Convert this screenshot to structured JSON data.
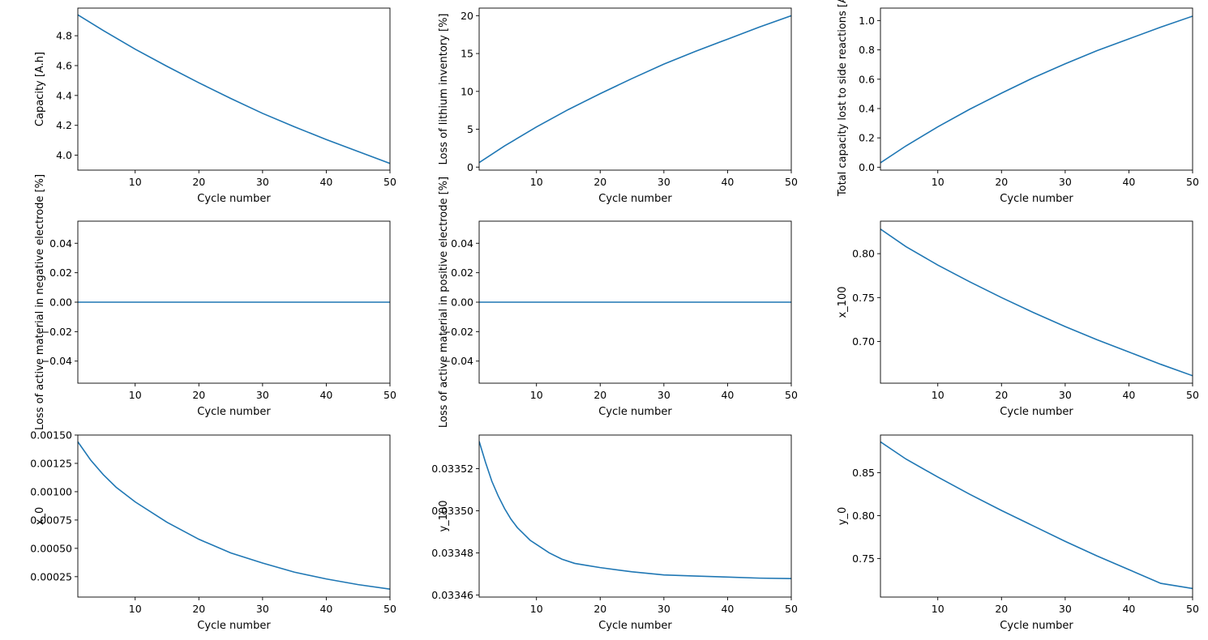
{
  "figure": {
    "line_color": "#1f77b4"
  },
  "chart_data": [
    {
      "type": "line",
      "xlabel": "Cycle number",
      "ylabel": "Capacity [A.h]",
      "xlim": [
        1,
        50
      ],
      "ylim": [
        3.9,
        4.985
      ],
      "xticks": [
        10,
        20,
        30,
        40,
        50
      ],
      "yticks": [
        4.0,
        4.2,
        4.4,
        4.6,
        4.8
      ],
      "ytick_labels": [
        "4.0",
        "4.2",
        "4.4",
        "4.6",
        "4.8"
      ],
      "series": [
        {
          "x": [
            1,
            5,
            10,
            15,
            20,
            25,
            30,
            35,
            40,
            45,
            50
          ],
          "values": [
            4.94,
            4.835,
            4.71,
            4.595,
            4.485,
            4.38,
            4.28,
            4.19,
            4.105,
            4.025,
            3.945
          ]
        }
      ],
      "grid": false
    },
    {
      "type": "line",
      "xlabel": "Cycle number",
      "ylabel": "Loss of lithium inventory [%]",
      "xlim": [
        1,
        50
      ],
      "ylim": [
        -0.4,
        21.0
      ],
      "xticks": [
        10,
        20,
        30,
        40,
        50
      ],
      "yticks": [
        0,
        5,
        10,
        15,
        20
      ],
      "ytick_labels": [
        "0",
        "5",
        "10",
        "15",
        "20"
      ],
      "series": [
        {
          "x": [
            1,
            5,
            10,
            15,
            20,
            25,
            30,
            35,
            40,
            45,
            50
          ],
          "values": [
            0.6,
            2.8,
            5.3,
            7.6,
            9.7,
            11.7,
            13.6,
            15.3,
            16.9,
            18.5,
            20.0
          ]
        }
      ],
      "grid": false
    },
    {
      "type": "line",
      "xlabel": "Cycle number",
      "ylabel": "Total capacity lost to side reactions [A.h]",
      "xlim": [
        1,
        50
      ],
      "ylim": [
        -0.02,
        1.085
      ],
      "xticks": [
        10,
        20,
        30,
        40,
        50
      ],
      "yticks": [
        0.0,
        0.2,
        0.4,
        0.6,
        0.8,
        1.0
      ],
      "ytick_labels": [
        "0.0",
        "0.2",
        "0.4",
        "0.6",
        "0.8",
        "1.0"
      ],
      "series": [
        {
          "x": [
            1,
            5,
            10,
            15,
            20,
            25,
            30,
            35,
            40,
            45,
            50
          ],
          "values": [
            0.03,
            0.145,
            0.275,
            0.395,
            0.505,
            0.61,
            0.705,
            0.795,
            0.875,
            0.955,
            1.03
          ]
        }
      ],
      "grid": false
    },
    {
      "type": "line",
      "xlabel": "Cycle number",
      "ylabel": "Loss of active material in negative electrode [%]",
      "xlim": [
        1,
        50
      ],
      "ylim": [
        -0.055,
        0.055
      ],
      "xticks": [
        10,
        20,
        30,
        40,
        50
      ],
      "yticks": [
        -0.04,
        -0.02,
        0.0,
        0.02,
        0.04
      ],
      "ytick_labels": [
        "−0.04",
        "−0.02",
        "0.00",
        "0.02",
        "0.04"
      ],
      "series": [
        {
          "x": [
            1,
            50
          ],
          "values": [
            0,
            0
          ]
        }
      ],
      "grid": false
    },
    {
      "type": "line",
      "xlabel": "Cycle number",
      "ylabel": "Loss of active material in positive electrode [%]",
      "xlim": [
        1,
        50
      ],
      "ylim": [
        -0.055,
        0.055
      ],
      "xticks": [
        10,
        20,
        30,
        40,
        50
      ],
      "yticks": [
        -0.04,
        -0.02,
        0.0,
        0.02,
        0.04
      ],
      "ytick_labels": [
        "−0.04",
        "−0.02",
        "0.00",
        "0.02",
        "0.04"
      ],
      "series": [
        {
          "x": [
            1,
            50
          ],
          "values": [
            0,
            0
          ]
        }
      ],
      "grid": false
    },
    {
      "type": "line",
      "xlabel": "Cycle number",
      "ylabel": "x_100",
      "xlim": [
        1,
        50
      ],
      "ylim": [
        0.6525,
        0.837
      ],
      "xticks": [
        10,
        20,
        30,
        40,
        50
      ],
      "yticks": [
        0.7,
        0.75,
        0.8
      ],
      "ytick_labels": [
        "0.70",
        "0.75",
        "0.80"
      ],
      "series": [
        {
          "x": [
            1,
            5,
            10,
            15,
            20,
            25,
            30,
            35,
            40,
            45,
            50
          ],
          "values": [
            0.828,
            0.808,
            0.787,
            0.768,
            0.75,
            0.733,
            0.717,
            0.702,
            0.688,
            0.674,
            0.661
          ]
        }
      ],
      "grid": false
    },
    {
      "type": "line",
      "xlabel": "Cycle number",
      "ylabel": "x_0",
      "xlim": [
        1,
        50
      ],
      "ylim": [
        7e-05,
        0.0015
      ],
      "xticks": [
        10,
        20,
        30,
        40,
        50
      ],
      "yticks": [
        0.00025,
        0.0005,
        0.00075,
        0.001,
        0.00125,
        0.0015
      ],
      "ytick_labels": [
        "0.00025",
        "0.00050",
        "0.00075",
        "0.00100",
        "0.00125",
        "0.00150"
      ],
      "series": [
        {
          "x": [
            1,
            3,
            5,
            7,
            10,
            15,
            20,
            25,
            30,
            35,
            40,
            45,
            50
          ],
          "values": [
            0.00144,
            0.00128,
            0.00115,
            0.00104,
            0.00091,
            0.00073,
            0.00058,
            0.00046,
            0.00037,
            0.00029,
            0.00023,
            0.00018,
            0.00014
          ]
        }
      ],
      "grid": false
    },
    {
      "type": "line",
      "xlabel": "Cycle number",
      "ylabel": "y_100",
      "xlim": [
        1,
        50
      ],
      "ylim": [
        0.033459,
        0.033536
      ],
      "xticks": [
        10,
        20,
        30,
        40,
        50
      ],
      "yticks": [
        0.03346,
        0.03348,
        0.0335,
        0.03352
      ],
      "ytick_labels": [
        "0.03346",
        "0.03348",
        "0.03350",
        "0.03352"
      ],
      "series": [
        {
          "x": [
            1,
            2,
            3,
            4,
            5,
            6,
            7,
            8,
            9,
            10,
            12,
            14,
            16,
            18,
            20,
            25,
            30,
            35,
            40,
            45,
            50
          ],
          "values": [
            0.033533,
            0.033523,
            0.033514,
            0.033507,
            0.033501,
            0.033496,
            0.033492,
            0.033489,
            0.033486,
            0.033484,
            0.03348,
            0.033477,
            0.033475,
            0.033474,
            0.033473,
            0.033471,
            0.0334695,
            0.033469,
            0.0334685,
            0.033468,
            0.0334678
          ]
        }
      ],
      "grid": false
    },
    {
      "type": "line",
      "xlabel": "Cycle number",
      "ylabel": "y_0",
      "xlim": [
        1,
        50
      ],
      "ylim": [
        0.705,
        0.894
      ],
      "xticks": [
        10,
        20,
        30,
        40,
        50
      ],
      "yticks": [
        0.75,
        0.8,
        0.85
      ],
      "ytick_labels": [
        "0.75",
        "0.80",
        "0.85"
      ],
      "series": [
        {
          "x": [
            1,
            5,
            10,
            15,
            20,
            25,
            30,
            35,
            40,
            45,
            50
          ],
          "values": [
            0.886,
            0.866,
            0.845,
            0.825,
            0.806,
            0.788,
            0.77,
            0.753,
            0.737,
            0.721,
            0.715
          ]
        }
      ],
      "grid": false
    }
  ]
}
